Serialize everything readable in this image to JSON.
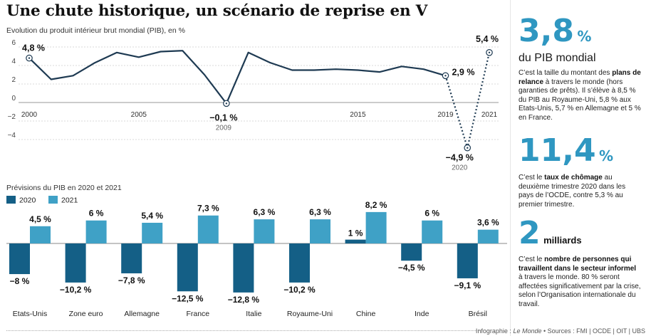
{
  "title": "Une chute historique, un scénario de reprise en V",
  "subtitle": "Evolution du produit intérieur brut mondial (PIB), en %",
  "colors": {
    "line": "#1e3a52",
    "bar2020": "#145f86",
    "bar2021": "#3fa1c6",
    "accent": "#2f97c1"
  },
  "chart_data": [
    {
      "type": "line",
      "title": "Evolution du produit intérieur brut mondial (PIB), en %",
      "x": [
        2000,
        2001,
        2002,
        2003,
        2004,
        2005,
        2006,
        2007,
        2008,
        2009,
        2010,
        2011,
        2012,
        2013,
        2014,
        2015,
        2016,
        2017,
        2018,
        2019,
        2020,
        2021
      ],
      "y": [
        4.8,
        2.5,
        2.9,
        4.3,
        5.4,
        4.9,
        5.5,
        5.6,
        3.0,
        -0.1,
        5.4,
        4.3,
        3.5,
        3.5,
        3.6,
        3.5,
        3.3,
        3.9,
        3.6,
        2.9,
        -4.9,
        5.4
      ],
      "ylim": [
        -5,
        7
      ],
      "yticks": [
        "6",
        "4",
        "2",
        "0",
        "−2",
        "−4"
      ],
      "xticks": [
        "2000",
        "2005",
        "2015",
        "2019",
        "2021"
      ],
      "annotations": [
        {
          "label": "4,8 %"
        },
        {
          "label": "−0,1 %",
          "sub": "2009"
        },
        {
          "label": "2,9 %"
        },
        {
          "label": "−4,9 %",
          "sub": "2020"
        },
        {
          "label": "5,4 %"
        }
      ]
    },
    {
      "type": "bar",
      "title": "Prévisions du PIB en 2020 et 2021",
      "categories": [
        "Etats-Unis",
        "Zone euro",
        "Allemagne",
        "France",
        "Italie",
        "Royaume-Uni",
        "Chine",
        "Inde",
        "Brésil"
      ],
      "series": [
        {
          "name": "2020",
          "values": [
            -8,
            -10.2,
            -7.8,
            -12.5,
            -12.8,
            -10.2,
            1,
            -4.5,
            -9.1
          ],
          "labels": [
            "−8 %",
            "−10,2 %",
            "−7,8 %",
            "−12,5 %",
            "−12,8 %",
            "−10,2 %",
            "1 %",
            "−4,5 %",
            "−9,1 %"
          ]
        },
        {
          "name": "2021",
          "values": [
            4.5,
            6,
            5.4,
            7.3,
            6.3,
            6.3,
            8.2,
            6,
            3.6
          ],
          "labels": [
            "4,5 %",
            "6 %",
            "5,4 %",
            "7,3 %",
            "6,3 %",
            "6,3 %",
            "8,2 %",
            "6 %",
            "3,6 %"
          ]
        }
      ],
      "legend": "top-left"
    }
  ],
  "sidebar": {
    "stat1": {
      "value": "3,8",
      "unit": "%",
      "label": "du PIB mondial",
      "text": [
        "C’est la taille du montant des ",
        "plans de relance",
        " à travers le monde (hors garanties de prêts). Il s’élève à 8,5 % du PIB au Royaume-Uni, 5,8 % aux Etats-Unis, 5,7 % en Allemagne et 5 % en France."
      ]
    },
    "stat2": {
      "value": "11,4",
      "unit": "%",
      "text": [
        "C’est le ",
        "taux de chômage",
        " au deuxième trimestre 2020 dans les pays de l’OCDE, contre 5,3 % au premier trimestre."
      ]
    },
    "stat3": {
      "value": "2",
      "unit": "milliards",
      "text": [
        "C’est le ",
        "nombre de personnes qui travaillent dans le secteur informel",
        " à travers le monde. 80 % seront affectées significativement par la crise, selon l’Organisation internationale du travail."
      ]
    }
  },
  "footer": {
    "prefix": "Infographie : ",
    "outlet": "Le Monde",
    "sources": " • Sources : FMI | OCDE | OIT | UBS"
  }
}
